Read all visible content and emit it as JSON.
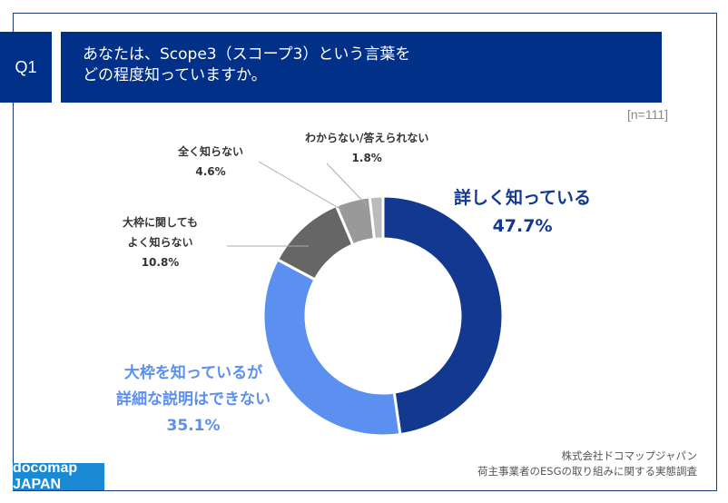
{
  "header": {
    "q_label": "Q1",
    "title_line1": "あなたは、Scope3（スコープ3）という言葉を",
    "title_line2": "どの程度知っていますか。",
    "sample": "[n=111]"
  },
  "chart_data": {
    "type": "pie",
    "donut": true,
    "start": "top",
    "direction": "clockwise",
    "series": [
      {
        "label": "詳しく知っている",
        "value": 47.7,
        "value_label": "47.7%",
        "color": "#12398f"
      },
      {
        "label": "大枠を知っているが詳細な説明はできない",
        "label_lines": [
          "大枠を知っているが",
          "詳細な説明はできない"
        ],
        "value": 35.1,
        "value_label": "35.1%",
        "color": "#5b8ff0"
      },
      {
        "label": "大枠に関してもよく知らない",
        "label_lines": [
          "大枠に関しても",
          "よく知らない"
        ],
        "value": 10.8,
        "value_label": "10.8%",
        "color": "#666666"
      },
      {
        "label": "全く知らない",
        "value": 4.6,
        "value_label": "4.6%",
        "color": "#999999"
      },
      {
        "label": "わからない/答えられない",
        "value": 1.8,
        "value_label": "1.8%",
        "color": "#bbbbbb"
      }
    ]
  },
  "footer": {
    "logo": "docomap JAPAN",
    "source_line1": "株式会社ドコマップジャパン",
    "source_line2": "荷主事業者のESGの取り組みに関する実態調査"
  }
}
